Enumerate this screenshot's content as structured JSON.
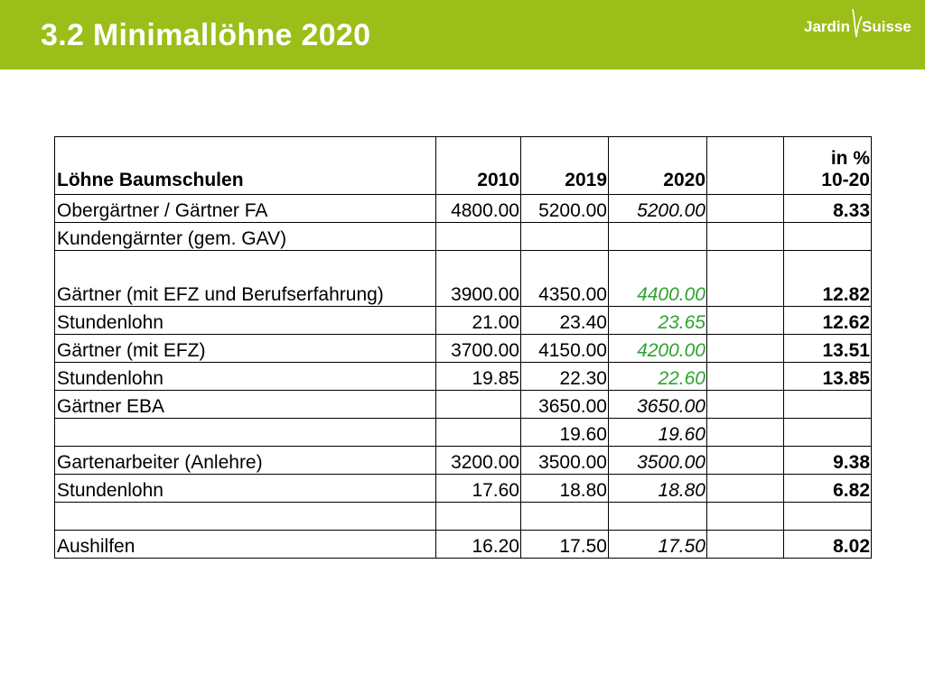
{
  "header": {
    "title": "3.2 Minimallöhne 2020",
    "logo_left": "Jardin",
    "logo_right": "Suisse",
    "color": "#9cbe18"
  },
  "table": {
    "headers": {
      "label": "Löhne Baumschulen",
      "y2010": "2010",
      "y2019": "2019",
      "y2020": "2020",
      "empty": "",
      "pct_line1": "in %",
      "pct_line2": "10-20"
    },
    "rows": [
      {
        "label": "Obergärtner / Gärtner FA",
        "y2010": "4800.00",
        "y2019": "5200.00",
        "y2020": "5200.00",
        "pct": "8.33",
        "green": false
      },
      {
        "label": "Kundengärnter (gem. GAV)",
        "y2010": "",
        "y2019": "",
        "y2020": "",
        "pct": "",
        "green": false
      },
      {
        "label": "Gärtner (mit EFZ und Berufserfahrung)",
        "y2010": "3900.00",
        "y2019": "4350.00",
        "y2020": "4400.00",
        "pct": "12.82",
        "green": true
      },
      {
        "label": "Stundenlohn",
        "y2010": "21.00",
        "y2019": "23.40",
        "y2020": "23.65",
        "pct": "12.62",
        "green": true
      },
      {
        "label": "Gärtner (mit EFZ)",
        "y2010": "3700.00",
        "y2019": "4150.00",
        "y2020": "4200.00",
        "pct": "13.51",
        "green": true
      },
      {
        "label": "Stundenlohn",
        "y2010": "19.85",
        "y2019": "22.30",
        "y2020": "22.60",
        "pct": "13.85",
        "green": true
      },
      {
        "label": "Gärtner EBA",
        "y2010": "",
        "y2019": "3650.00",
        "y2020": "3650.00",
        "pct": "",
        "green": false
      },
      {
        "label": "",
        "y2010": "",
        "y2019": "19.60",
        "y2020": "19.60",
        "pct": "",
        "green": false
      },
      {
        "label": "Gartenarbeiter (Anlehre)",
        "y2010": "3200.00",
        "y2019": "3500.00",
        "y2020": "3500.00",
        "pct": "9.38",
        "green": false
      },
      {
        "label": "Stundenlohn",
        "y2010": "17.60",
        "y2019": "18.80",
        "y2020": "18.80",
        "pct": "6.82",
        "green": false
      },
      {
        "label": "",
        "y2010": "",
        "y2019": "",
        "y2020": "",
        "pct": "",
        "green": false
      },
      {
        "label": "Aushilfen",
        "y2010": "16.20",
        "y2019": "17.50",
        "y2020": "17.50",
        "pct": "8.02",
        "green": false
      }
    ],
    "green_color": "#2ea32e"
  }
}
